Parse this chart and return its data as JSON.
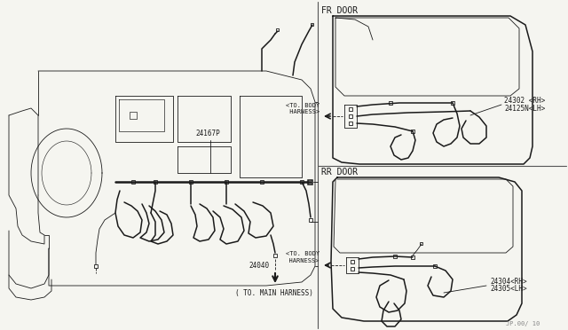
{
  "bg_color": "#f5f5f0",
  "line_color": "#1a1a1a",
  "thin_line": 0.6,
  "med_line": 1.1,
  "thick_line": 1.8,
  "fr_door_label": "FR DOOR",
  "rr_door_label": "RR DOOR",
  "label_24167P": "24167P",
  "label_24040": "24040",
  "label_main_harness": "( TO. MAIN HARNESS)",
  "label_fr_body": "<TO. BODY\n HARNESS>",
  "label_rr_body": "<TO. BODY\n  HARNESS>",
  "label_24302": "24302 <RH>",
  "label_24125N": "24125N<LH>",
  "label_24304": "24304<RH>",
  "label_24305": "24305<LH>",
  "watermark": "JP.00/ 10"
}
